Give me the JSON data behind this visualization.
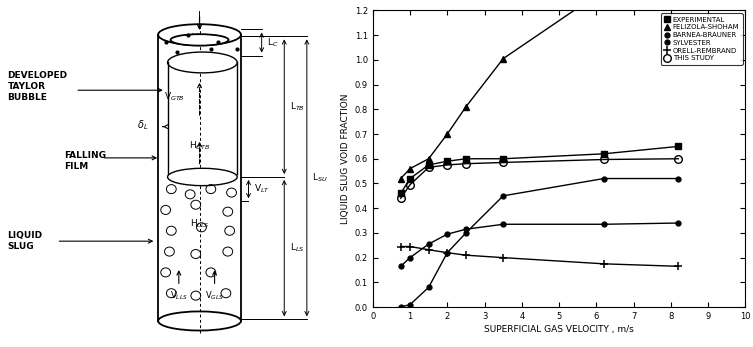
{
  "graph": {
    "xlim": [
      0,
      10
    ],
    "ylim": [
      0,
      1.2
    ],
    "xticks": [
      0,
      1,
      2,
      3,
      4,
      5,
      6,
      7,
      8,
      9,
      10
    ],
    "yticks": [
      0,
      0.1,
      0.2,
      0.3,
      0.4,
      0.5,
      0.6,
      0.7,
      0.8,
      0.9,
      1.0,
      1.1,
      1.2
    ],
    "xlabel": "SUPERFICIAL GAS VELOCITY , m/s",
    "ylabel": "LIQUID SLUG VOID FRACTION",
    "experimental": {
      "label": "EXPERIMENTAL",
      "marker": "s",
      "x": [
        0.75,
        1.0,
        1.5,
        2.0,
        2.5,
        3.5,
        6.2,
        8.2
      ],
      "y": [
        0.46,
        0.52,
        0.575,
        0.59,
        0.6,
        0.6,
        0.62,
        0.65
      ]
    },
    "felizola_shoham": {
      "label": "FELIZOLA-SHOHAM",
      "marker": "^",
      "x": [
        0.75,
        1.0,
        1.5,
        2.0,
        2.5,
        3.5
      ],
      "y": [
        0.52,
        0.56,
        0.6,
        0.7,
        0.81,
        1.005
      ],
      "x_line": [
        0.75,
        1.0,
        1.5,
        2.0,
        2.5,
        3.5,
        5.5
      ],
      "y_line": [
        0.52,
        0.56,
        0.6,
        0.7,
        0.81,
        1.005,
        1.21
      ]
    },
    "barnea_brauner": {
      "label": "BARNEA-BRAUNER",
      "marker": "o",
      "x": [
        0.75,
        1.0,
        1.5,
        2.0,
        2.5,
        3.5,
        6.2,
        8.2
      ],
      "y": [
        0.0,
        0.01,
        0.08,
        0.22,
        0.3,
        0.45,
        0.52,
        0.52
      ]
    },
    "sylvester": {
      "label": "SYLVESTER",
      "marker": "o",
      "x": [
        0.75,
        1.0,
        1.5,
        2.0,
        2.5,
        3.5,
        6.2,
        8.2
      ],
      "y": [
        0.165,
        0.2,
        0.255,
        0.295,
        0.315,
        0.335,
        0.335,
        0.34
      ]
    },
    "orell_rembrand": {
      "label": "ORELL-REMBRAND",
      "marker": "+",
      "x": [
        0.75,
        1.0,
        1.5,
        2.0,
        2.5,
        3.5,
        6.2,
        8.2
      ],
      "y": [
        0.245,
        0.245,
        0.232,
        0.22,
        0.21,
        0.2,
        0.175,
        0.165
      ]
    },
    "this_study": {
      "label": "THIS STUDY",
      "marker": "o",
      "x": [
        0.75,
        1.0,
        1.5,
        2.0,
        2.5,
        3.5,
        6.2,
        8.2
      ],
      "y": [
        0.44,
        0.495,
        0.565,
        0.575,
        0.58,
        0.585,
        0.597,
        0.6
      ]
    }
  }
}
